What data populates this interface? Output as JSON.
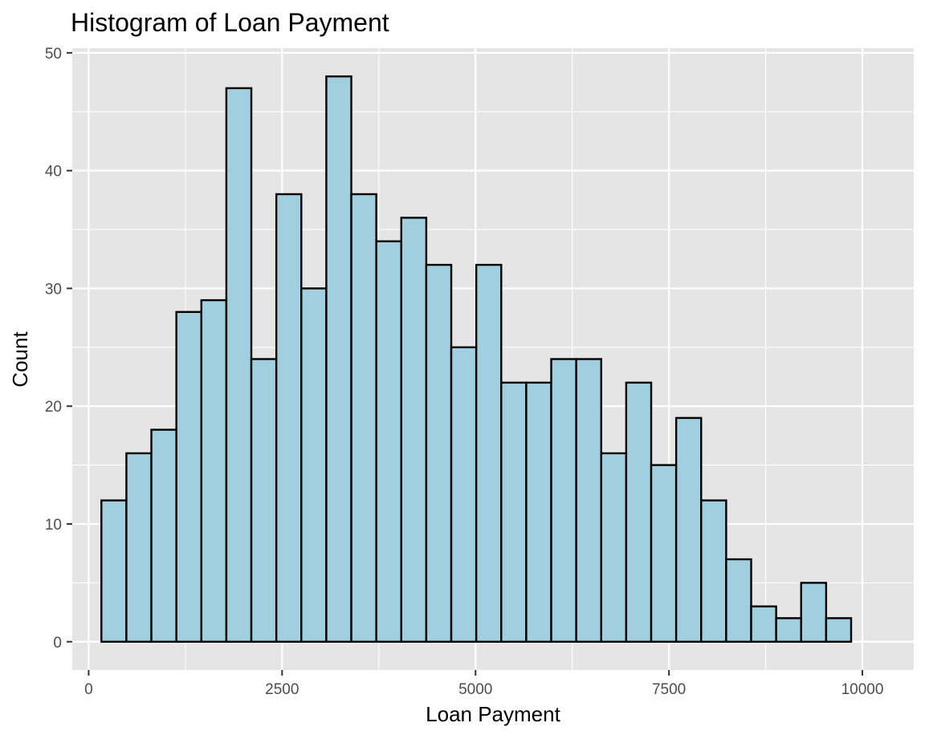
{
  "chart_data": {
    "type": "bar",
    "title": "Histogram of Loan Payment",
    "xlabel": "Loan Payment",
    "ylabel": "Count",
    "bin_width": 323,
    "bins": [
      {
        "x": 326,
        "count": 12
      },
      {
        "x": 649,
        "count": 16
      },
      {
        "x": 972,
        "count": 18
      },
      {
        "x": 1295,
        "count": 28
      },
      {
        "x": 1618,
        "count": 29
      },
      {
        "x": 1941,
        "count": 47
      },
      {
        "x": 2264,
        "count": 24
      },
      {
        "x": 2587,
        "count": 38
      },
      {
        "x": 2910,
        "count": 30
      },
      {
        "x": 3233,
        "count": 48
      },
      {
        "x": 3556,
        "count": 38
      },
      {
        "x": 3879,
        "count": 34
      },
      {
        "x": 4202,
        "count": 36
      },
      {
        "x": 4525,
        "count": 32
      },
      {
        "x": 4848,
        "count": 25
      },
      {
        "x": 5171,
        "count": 32
      },
      {
        "x": 5494,
        "count": 22
      },
      {
        "x": 5817,
        "count": 22
      },
      {
        "x": 6140,
        "count": 24
      },
      {
        "x": 6463,
        "count": 24
      },
      {
        "x": 6786,
        "count": 16
      },
      {
        "x": 7109,
        "count": 22
      },
      {
        "x": 7432,
        "count": 15
      },
      {
        "x": 7755,
        "count": 19
      },
      {
        "x": 8078,
        "count": 12
      },
      {
        "x": 8401,
        "count": 7
      },
      {
        "x": 8724,
        "count": 3
      },
      {
        "x": 9047,
        "count": 2
      },
      {
        "x": 9370,
        "count": 5
      },
      {
        "x": 9693,
        "count": 2
      }
    ],
    "xlim": [
      -212,
      10664
    ],
    "ylim": [
      -2.4,
      50.4
    ],
    "x_ticks": [
      0,
      2500,
      5000,
      7500,
      10000
    ],
    "x_tick_labels": [
      "0",
      "2500",
      "5000",
      "7500",
      "10000"
    ],
    "y_ticks": [
      0,
      10,
      20,
      30,
      40,
      50
    ],
    "y_tick_labels": [
      "0",
      "10",
      "20",
      "30",
      "40",
      "50"
    ],
    "grid": true,
    "colors": {
      "panel_background": "#e5e5e5",
      "bar_fill": "#a0cfe0",
      "bar_outline": "#000000",
      "grid": "#ffffff"
    }
  }
}
